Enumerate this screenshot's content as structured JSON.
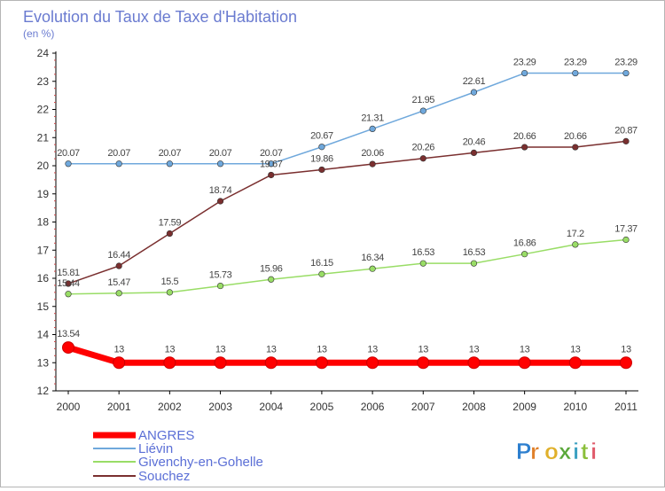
{
  "chart_data": {
    "type": "line",
    "title": "Evolution du Taux de Taxe d'Habitation",
    "subtitle": "(en %)",
    "categories": [
      "2000",
      "2001",
      "2002",
      "2003",
      "2004",
      "2005",
      "2006",
      "2007",
      "2008",
      "2009",
      "2010",
      "2011"
    ],
    "ylim": [
      12,
      24
    ],
    "yticks": [
      "12",
      "13",
      "14",
      "15",
      "16",
      "17",
      "18",
      "19",
      "20",
      "21",
      "22",
      "23",
      "24"
    ],
    "grid": false,
    "legend_position": "bottom-left",
    "series": [
      {
        "name": "ANGRES",
        "color": "#ff0000",
        "values": [
          13.54,
          13,
          13,
          13,
          13,
          13,
          13,
          13,
          13,
          13,
          13,
          13
        ],
        "labels": [
          "13.54",
          "13",
          "13",
          "13",
          "13",
          "13",
          "13",
          "13",
          "13",
          "13",
          "13",
          "13"
        ]
      },
      {
        "name": "Liévin",
        "color": "#6fa8dc",
        "values": [
          20.07,
          20.07,
          20.07,
          20.07,
          20.07,
          20.67,
          21.31,
          21.95,
          22.61,
          23.29,
          23.29,
          23.29
        ],
        "labels": [
          "20.07",
          "20.07",
          "20.07",
          "20.07",
          "20.07",
          "20.67",
          "21.31",
          "21.95",
          "22.61",
          "23.29",
          "23.29",
          "23.29"
        ]
      },
      {
        "name": "Givenchy-en-Gohelle",
        "color": "#99dd66",
        "values": [
          15.44,
          15.47,
          15.5,
          15.73,
          15.96,
          16.15,
          16.34,
          16.53,
          16.53,
          16.86,
          17.2,
          17.37
        ],
        "labels": [
          "15.44",
          "15.47",
          "15.5",
          "15.73",
          "15.96",
          "16.15",
          "16.34",
          "16.53",
          "16.53",
          "16.86",
          "17.2",
          "17.37"
        ]
      },
      {
        "name": "Souchez",
        "color": "#7a2f2f",
        "values": [
          15.81,
          16.44,
          17.59,
          18.74,
          19.67,
          19.86,
          20.06,
          20.26,
          20.46,
          20.66,
          20.66,
          20.87
        ],
        "labels": [
          "15.81",
          "16.44",
          "17.59",
          "18.74",
          "19.67",
          "19.86",
          "20.06",
          "20.26",
          "20.46",
          "20.66",
          "20.66",
          "20.87"
        ]
      }
    ]
  },
  "brand": {
    "logo_text": "Proxiti"
  }
}
